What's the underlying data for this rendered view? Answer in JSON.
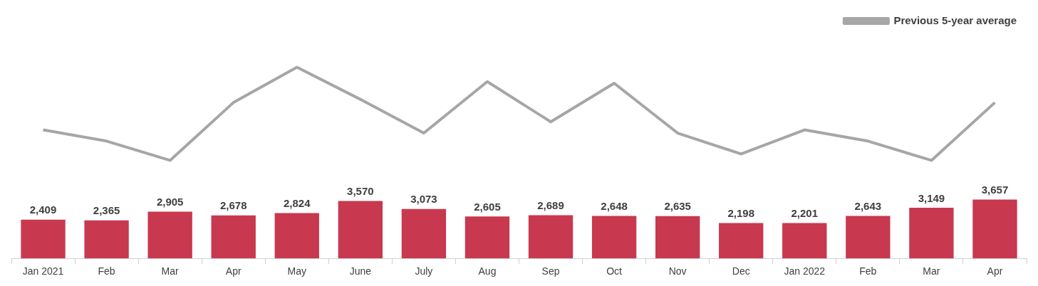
{
  "chart_data": {
    "type": "bar",
    "legend": "top right",
    "categories": [
      "Jan 2021",
      "Feb",
      "Mar",
      "Apr",
      "May",
      "June",
      "July",
      "Aug",
      "Sep",
      "Oct",
      "Nov",
      "Dec",
      "Jan 2022",
      "Feb",
      "Mar",
      "Apr"
    ],
    "series": [
      {
        "color": "#c8384f",
        "values": [
          2409,
          2365,
          2905,
          2678,
          2824,
          3570,
          3073,
          2605,
          2689,
          2648,
          2635,
          2198,
          2201,
          2643,
          3149,
          3657
        ],
        "value_labels": [
          "2,409",
          "2,365",
          "2,905",
          "2,678",
          "2,824",
          "3,570",
          "3,073",
          "2,605",
          "2,689",
          "2,648",
          "2,635",
          "2,198",
          "2,201",
          "2,643",
          "3,149",
          "3,657"
        ]
      },
      {
        "type": "line",
        "name": "Previous 5-year average",
        "color": "#a6a6a6",
        "values": [
          8000,
          7300,
          6100,
          9700,
          11900,
          9900,
          7800,
          11000,
          8500,
          10900,
          7800,
          6500,
          8000,
          7300,
          6100,
          9700
        ]
      }
    ]
  }
}
